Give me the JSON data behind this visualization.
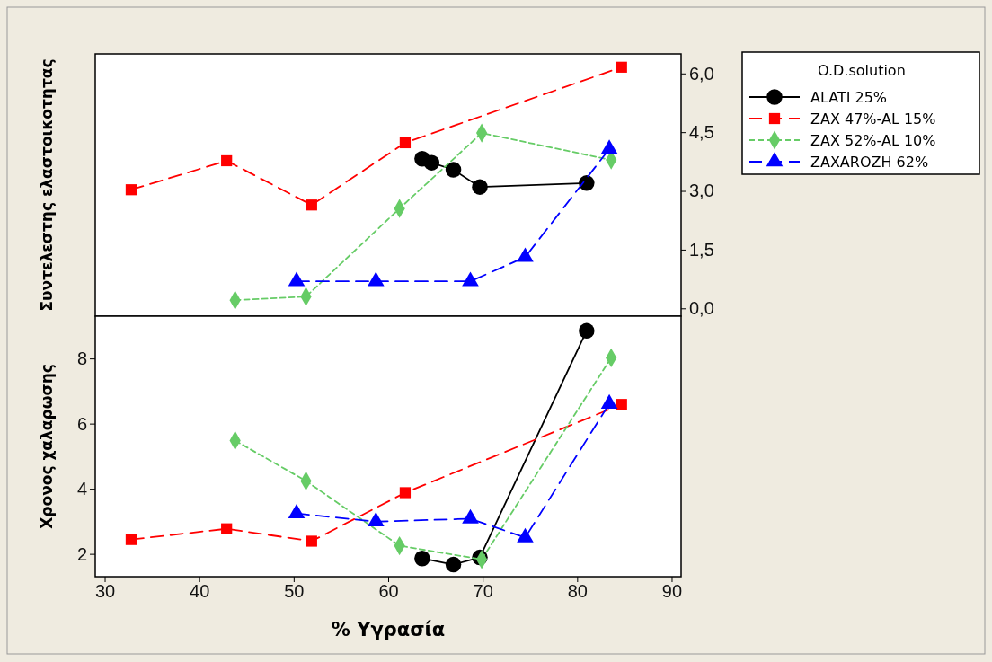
{
  "chart_data": [
    {
      "type": "line",
      "ylabel": "Συντελεστης ελαστοικοτητας",
      "legend_title": "O.D.solution",
      "legend": "right",
      "grid": false,
      "tick_labels": "y",
      "xlim": [
        29,
        91
      ],
      "ylim": [
        -0.2,
        6.5
      ],
      "yticks": [
        {
          "value": 0,
          "label": "0,0"
        },
        {
          "value": 1.5,
          "label": "1,5"
        },
        {
          "value": 3,
          "label": "3,0"
        },
        {
          "value": 4.5,
          "label": "4,5"
        },
        {
          "value": 6,
          "label": "6,0"
        }
      ],
      "series": [
        {
          "name": "ALATI 25%",
          "color": "#000000",
          "marker": "circle",
          "line_style": "solid",
          "x": [
            63.6,
            64.6,
            66.9,
            69.7,
            81.0
          ],
          "values": [
            3.82,
            3.72,
            3.54,
            3.1,
            3.2
          ]
        },
        {
          "name": "ZAX 47%-AL 15%",
          "color": "#ff0000",
          "marker": "square",
          "line_style": "dashed",
          "x": [
            32.8,
            42.9,
            51.9,
            61.8,
            84.7
          ],
          "values": [
            3.03,
            3.77,
            2.64,
            4.23,
            6.16
          ]
        },
        {
          "name": "ZAX 52%-AL 10%",
          "color": "#66cc66",
          "marker": "diamond",
          "line_style": "dotted",
          "x": [
            43.8,
            51.3,
            61.2,
            69.9,
            83.6
          ],
          "values": [
            0.21,
            0.3,
            2.55,
            4.48,
            3.79
          ]
        },
        {
          "name": "ZAXAROZH 62%",
          "color": "#0000ff",
          "marker": "triangle",
          "line_style": "dashed",
          "x": [
            50.3,
            58.7,
            68.7,
            74.5,
            83.4
          ],
          "values": [
            0.69,
            0.69,
            0.69,
            1.31,
            4.07
          ]
        }
      ]
    },
    {
      "type": "line",
      "xlabel": "% Υγρασία",
      "ylabel": "Χρονος χαλαρωσης",
      "grid": false,
      "xlim": [
        29,
        91
      ],
      "xticks": [
        30,
        40,
        50,
        60,
        70,
        80,
        90
      ],
      "ylim": [
        1.3,
        9.3
      ],
      "yticks": [
        2,
        4,
        6,
        8
      ],
      "series": [
        {
          "color": "#000000",
          "marker": "circle",
          "line_style": "solid",
          "x": [
            63.6,
            66.9,
            69.7,
            81.0
          ],
          "values": [
            1.86,
            1.67,
            1.89,
            8.85
          ]
        },
        {
          "color": "#ff0000",
          "marker": "square",
          "line_style": "dashed",
          "x": [
            32.8,
            42.9,
            51.9,
            61.8,
            84.7
          ],
          "values": [
            2.44,
            2.77,
            2.39,
            3.88,
            6.59
          ]
        },
        {
          "color": "#66cc66",
          "marker": "diamond",
          "line_style": "dotted",
          "x": [
            43.8,
            51.3,
            61.2,
            69.9,
            83.6
          ],
          "values": [
            5.48,
            4.24,
            2.25,
            1.83,
            8.02
          ]
        },
        {
          "color": "#0000ff",
          "marker": "triangle",
          "line_style": "dashed",
          "x": [
            50.3,
            58.7,
            68.7,
            74.5,
            83.4
          ],
          "values": [
            3.24,
            2.99,
            3.08,
            2.5,
            6.61
          ]
        }
      ]
    }
  ]
}
